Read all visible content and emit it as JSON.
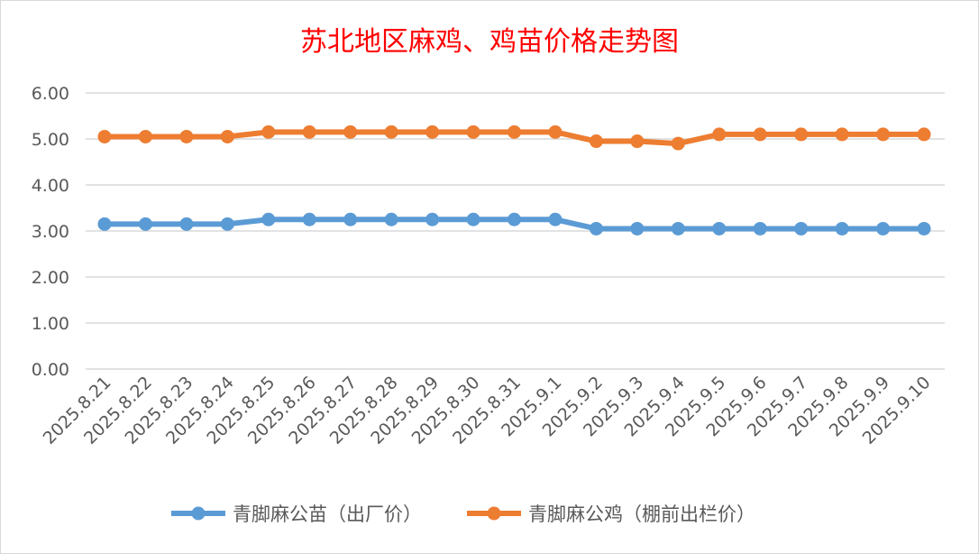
{
  "chart_data": {
    "type": "line",
    "title": "苏北地区麻鸡、鸡苗价格走势图",
    "xlabel": "",
    "ylabel": "",
    "ylim": [
      0,
      6
    ],
    "yticks": [
      "0.00",
      "1.00",
      "2.00",
      "3.00",
      "4.00",
      "5.00",
      "6.00"
    ],
    "grid": true,
    "legend_position": "bottom",
    "categories": [
      "2025.8.21",
      "2025.8.22",
      "2025.8.23",
      "2025.8.24",
      "2025.8.25",
      "2025.8.26",
      "2025.8.27",
      "2025.8.28",
      "2025.8.29",
      "2025.8.30",
      "2025.8.31",
      "2025.9.1",
      "2025.9.2",
      "2025.9.3",
      "2025.9.4",
      "2025.9.5",
      "2025.9.6",
      "2025.9.7",
      "2025.9.8",
      "2025.9.9",
      "2025.9.10"
    ],
    "series": [
      {
        "name": "青脚麻公苗（出厂价）",
        "color": "#5b9bd5",
        "values": [
          3.15,
          3.15,
          3.15,
          3.15,
          3.25,
          3.25,
          3.25,
          3.25,
          3.25,
          3.25,
          3.25,
          3.25,
          3.05,
          3.05,
          3.05,
          3.05,
          3.05,
          3.05,
          3.05,
          3.05,
          3.05
        ]
      },
      {
        "name": "青脚麻公鸡（棚前出栏价）",
        "color": "#ed7d31",
        "values": [
          5.05,
          5.05,
          5.05,
          5.05,
          5.15,
          5.15,
          5.15,
          5.15,
          5.15,
          5.15,
          5.15,
          5.15,
          4.95,
          4.95,
          4.9,
          5.1,
          5.1,
          5.1,
          5.1,
          5.1,
          5.1
        ]
      }
    ]
  }
}
